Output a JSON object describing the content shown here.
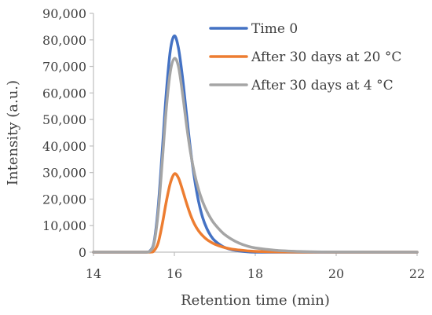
{
  "chart_data": {
    "type": "line",
    "title": "",
    "xlabel": "Retention time (min)",
    "ylabel": "Intensity (a.u.)",
    "xlim": [
      14,
      22
    ],
    "ylim": [
      0,
      90000
    ],
    "x_ticks": [
      14,
      16,
      18,
      20,
      22
    ],
    "x_tick_labels": [
      "14",
      "16",
      "18",
      "20",
      "22"
    ],
    "y_ticks": [
      0,
      10000,
      20000,
      30000,
      40000,
      50000,
      60000,
      70000,
      80000,
      90000
    ],
    "y_tick_labels": [
      "0",
      "10,000",
      "20,000",
      "30,000",
      "40,000",
      "50,000",
      "60,000",
      "70,000",
      "80,000",
      "90,000"
    ],
    "grid": false,
    "legend_position": "top-right",
    "series": [
      {
        "name": "Time 0",
        "color": "#4472C4",
        "points": [
          [
            14,
            0
          ],
          [
            15.0,
            0
          ],
          [
            15.3,
            0
          ],
          [
            15.4,
            500
          ],
          [
            15.5,
            4000
          ],
          [
            15.6,
            17000
          ],
          [
            15.7,
            38000
          ],
          [
            15.8,
            60000
          ],
          [
            15.9,
            76000
          ],
          [
            16.0,
            81500
          ],
          [
            16.1,
            77000
          ],
          [
            16.2,
            66000
          ],
          [
            16.3,
            52000
          ],
          [
            16.4,
            38500
          ],
          [
            16.5,
            27500
          ],
          [
            16.6,
            19000
          ],
          [
            16.7,
            13000
          ],
          [
            16.8,
            9000
          ],
          [
            16.9,
            6200
          ],
          [
            17.0,
            4300
          ],
          [
            17.2,
            2100
          ],
          [
            17.4,
            1000
          ],
          [
            17.6,
            450
          ],
          [
            17.8,
            150
          ],
          [
            18.0,
            0
          ],
          [
            19.0,
            0
          ],
          [
            20.0,
            0
          ],
          [
            22,
            0
          ]
        ]
      },
      {
        "name": "After 30 days at 20 °C",
        "color": "#ED7D31",
        "points": [
          [
            14,
            0
          ],
          [
            15.0,
            0
          ],
          [
            15.4,
            0
          ],
          [
            15.5,
            600
          ],
          [
            15.6,
            3500
          ],
          [
            15.7,
            10500
          ],
          [
            15.8,
            19000
          ],
          [
            15.9,
            26000
          ],
          [
            16.0,
            29500
          ],
          [
            16.1,
            28000
          ],
          [
            16.2,
            23500
          ],
          [
            16.3,
            18500
          ],
          [
            16.4,
            14000
          ],
          [
            16.5,
            10500
          ],
          [
            16.6,
            8000
          ],
          [
            16.7,
            6200
          ],
          [
            16.8,
            4800
          ],
          [
            16.9,
            3800
          ],
          [
            17.0,
            3000
          ],
          [
            17.2,
            1900
          ],
          [
            17.4,
            1200
          ],
          [
            17.6,
            800
          ],
          [
            17.8,
            500
          ],
          [
            18.0,
            300
          ],
          [
            18.5,
            100
          ],
          [
            19.0,
            30
          ],
          [
            20.0,
            0
          ],
          [
            22,
            0
          ]
        ]
      },
      {
        "name": "After 30 days at 4 °C",
        "color": "#A5A5A5",
        "points": [
          [
            14,
            0
          ],
          [
            15.0,
            0
          ],
          [
            15.3,
            0
          ],
          [
            15.4,
            400
          ],
          [
            15.5,
            3500
          ],
          [
            15.6,
            15000
          ],
          [
            15.7,
            34000
          ],
          [
            15.8,
            54000
          ],
          [
            15.9,
            68000
          ],
          [
            16.0,
            73000
          ],
          [
            16.1,
            70000
          ],
          [
            16.2,
            60000
          ],
          [
            16.3,
            48000
          ],
          [
            16.4,
            37500
          ],
          [
            16.5,
            29500
          ],
          [
            16.6,
            23500
          ],
          [
            16.7,
            19000
          ],
          [
            16.8,
            15500
          ],
          [
            16.9,
            12700
          ],
          [
            17.0,
            10500
          ],
          [
            17.2,
            7200
          ],
          [
            17.4,
            5000
          ],
          [
            17.6,
            3400
          ],
          [
            17.8,
            2300
          ],
          [
            18.0,
            1600
          ],
          [
            18.5,
            700
          ],
          [
            19.0,
            300
          ],
          [
            19.5,
            120
          ],
          [
            20.0,
            50
          ],
          [
            21.0,
            10
          ],
          [
            22,
            0
          ]
        ]
      }
    ]
  }
}
